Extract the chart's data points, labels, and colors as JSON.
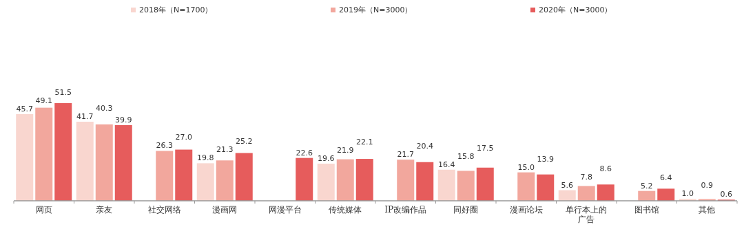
{
  "chart_data": {
    "type": "bar",
    "categories": [
      "网页",
      "亲友",
      "社交网络",
      "漫画网",
      "网漫平台",
      "传统媒体",
      "IP改编作品",
      "同好圈",
      "漫画论坛",
      "单行本上的广告",
      "图书馆",
      "其他"
    ],
    "series": [
      {
        "name": "2018年（N=1700）",
        "color": "#f9d6cf",
        "values": [
          45.7,
          41.7,
          null,
          19.8,
          null,
          19.6,
          null,
          16.4,
          null,
          5.6,
          null,
          1.0
        ],
        "value_labels": [
          "45.7",
          "41.7",
          null,
          "19.8",
          null,
          "19.6",
          null,
          "16.4",
          null,
          "5.6",
          null,
          "1.0"
        ]
      },
      {
        "name": "2019年（N=3000）",
        "color": "#f2a79d",
        "values": [
          49.1,
          40.3,
          26.3,
          21.3,
          null,
          21.9,
          21.7,
          15.8,
          15.0,
          7.8,
          5.2,
          0.9
        ],
        "value_labels": [
          "49.1",
          "40.3",
          "26.3",
          "21.3",
          null,
          "21.9",
          "21.7",
          "15.8",
          "15.0",
          "7.8",
          "5.2",
          "0.9"
        ]
      },
      {
        "name": "2020年（N=3000）",
        "color": "#e65c5c",
        "values": [
          51.5,
          39.9,
          27.0,
          25.2,
          22.6,
          22.1,
          20.4,
          17.5,
          13.9,
          8.6,
          6.4,
          0.6
        ],
        "value_labels": [
          "51.5",
          "39.9",
          "27.0",
          "25.2",
          "22.6",
          "22.1",
          "20.4",
          "17.5",
          "13.9",
          "8.6",
          "6.4",
          "0.6"
        ]
      }
    ],
    "legend": "top"
  }
}
